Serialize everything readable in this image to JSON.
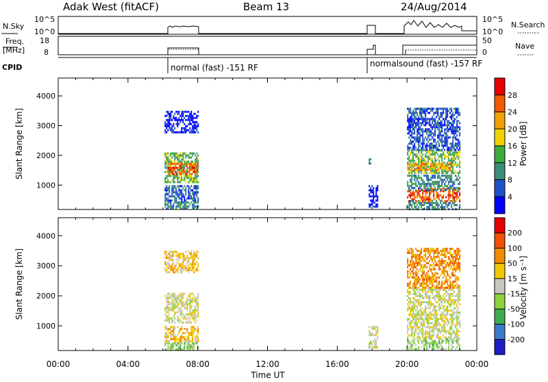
{
  "header": {
    "station": "Adak West (fitACF)",
    "beam": "Beam 13",
    "date": "24/Aug/2014"
  },
  "panels": {
    "nsky": {
      "label": "N.Sky",
      "right_label": "N.Search",
      "ticks_left": [
        "10^5",
        "10^0"
      ],
      "ticks_right": [
        "10^5",
        "10^0"
      ]
    },
    "freq": {
      "label_line1": "Freq.",
      "label_line2": "[MHz]",
      "right_label": "Nave",
      "ticks_left": [
        "18",
        "8"
      ],
      "ticks_right": [
        "50",
        "0"
      ]
    },
    "cpid": {
      "label": "CPID",
      "modes": [
        "normal (fast) -151 RF",
        "normalsound (fast) -157 RF"
      ]
    }
  },
  "colorbars": {
    "power": {
      "label": "Power [dB]",
      "ticks": [
        "28",
        "24",
        "20",
        "16",
        "12",
        "8",
        "4"
      ],
      "colors": [
        "#0000ff",
        "#1e50c8",
        "#3c8c78",
        "#3caa3c",
        "#f0d200",
        "#f0a000",
        "#f05a00",
        "#e60000"
      ]
    },
    "velocity": {
      "label": "Velocity [m s⁻¹]",
      "ticks": [
        "200",
        "100",
        "50",
        "15",
        "-15",
        "-50",
        "-100",
        "-200"
      ],
      "colors": [
        "#1e1ec8",
        "#3c7acc",
        "#40aa50",
        "#8cd23c",
        "#c8c8c0",
        "#f0c800",
        "#f08c00",
        "#f05000",
        "#e60000"
      ]
    }
  },
  "chart_data": [
    {
      "type": "heatmap",
      "title": "Power",
      "ylabel": "Slant Range [km]",
      "xlabel": "Time UT",
      "x_ticks": [
        "00:00",
        "04:00",
        "08:00",
        "12:00",
        "16:00",
        "20:00",
        "00:00"
      ],
      "xlim_hours": [
        0,
        24
      ],
      "ylim_km": [
        180,
        4600
      ],
      "y_ticks": [
        1000,
        2000,
        3000,
        4000
      ],
      "colorbar": "power",
      "echo_regions": [
        {
          "t_start": 6.1,
          "t_end": 8.0,
          "r_start": 180,
          "r_end": 450,
          "level": 2
        },
        {
          "t_start": 6.1,
          "t_end": 8.0,
          "r_start": 500,
          "r_end": 1000,
          "level": 1
        },
        {
          "t_start": 6.1,
          "t_end": 8.0,
          "r_start": 1100,
          "r_end": 2100,
          "level": 3
        },
        {
          "t_start": 6.3,
          "t_end": 8.0,
          "r_start": 1400,
          "r_end": 1750,
          "level": 6
        },
        {
          "t_start": 6.1,
          "t_end": 8.0,
          "r_start": 2800,
          "r_end": 3500,
          "level": 0
        },
        {
          "t_start": 17.8,
          "t_end": 18.3,
          "r_start": 300,
          "r_end": 1000,
          "level": 0
        },
        {
          "t_start": 17.8,
          "t_end": 17.9,
          "r_start": 1700,
          "r_end": 1900,
          "level": 2
        },
        {
          "t_start": 20.0,
          "t_end": 23.0,
          "r_start": 200,
          "r_end": 500,
          "level": 2
        },
        {
          "t_start": 20.0,
          "t_end": 23.0,
          "r_start": 450,
          "r_end": 900,
          "level": 6
        },
        {
          "t_start": 20.0,
          "t_end": 23.0,
          "r_start": 850,
          "r_end": 1350,
          "level": 2
        },
        {
          "t_start": 20.0,
          "t_end": 23.0,
          "r_start": 1400,
          "r_end": 2200,
          "level": 3
        },
        {
          "t_start": 20.0,
          "t_end": 22.5,
          "r_start": 1500,
          "r_end": 1750,
          "level": 5
        },
        {
          "t_start": 20.0,
          "t_end": 23.0,
          "r_start": 2200,
          "r_end": 3600,
          "level": 1
        }
      ]
    },
    {
      "type": "heatmap",
      "title": "Velocity",
      "ylabel": "Slant Range [km]",
      "xlabel": "Time UT",
      "x_ticks": [
        "00:00",
        "04:00",
        "08:00",
        "12:00",
        "16:00",
        "20:00",
        "00:00"
      ],
      "xlim_hours": [
        0,
        24
      ],
      "ylim_km": [
        180,
        4600
      ],
      "y_ticks": [
        1000,
        2000,
        3000,
        4000
      ],
      "colorbar": "velocity",
      "echo_regions": [
        {
          "t_start": 6.1,
          "t_end": 8.0,
          "r_start": 180,
          "r_end": 450,
          "level": 3
        },
        {
          "t_start": 6.1,
          "t_end": 8.0,
          "r_start": 500,
          "r_end": 1000,
          "level": 5
        },
        {
          "t_start": 6.1,
          "t_end": 8.0,
          "r_start": 1100,
          "r_end": 2100,
          "level": 4
        },
        {
          "t_start": 6.1,
          "t_end": 8.0,
          "r_start": 2800,
          "r_end": 3500,
          "level": 5
        },
        {
          "t_start": 17.8,
          "t_end": 18.3,
          "r_start": 300,
          "r_end": 1000,
          "level": 4
        },
        {
          "t_start": 20.0,
          "t_end": 23.0,
          "r_start": 200,
          "r_end": 600,
          "level": 3
        },
        {
          "t_start": 20.0,
          "t_end": 23.0,
          "r_start": 600,
          "r_end": 1400,
          "level": 4
        },
        {
          "t_start": 20.0,
          "t_end": 23.0,
          "r_start": 1400,
          "r_end": 2300,
          "level": 4
        },
        {
          "t_start": 20.0,
          "t_end": 23.0,
          "r_start": 2300,
          "r_end": 3600,
          "level": 6
        }
      ]
    }
  ]
}
